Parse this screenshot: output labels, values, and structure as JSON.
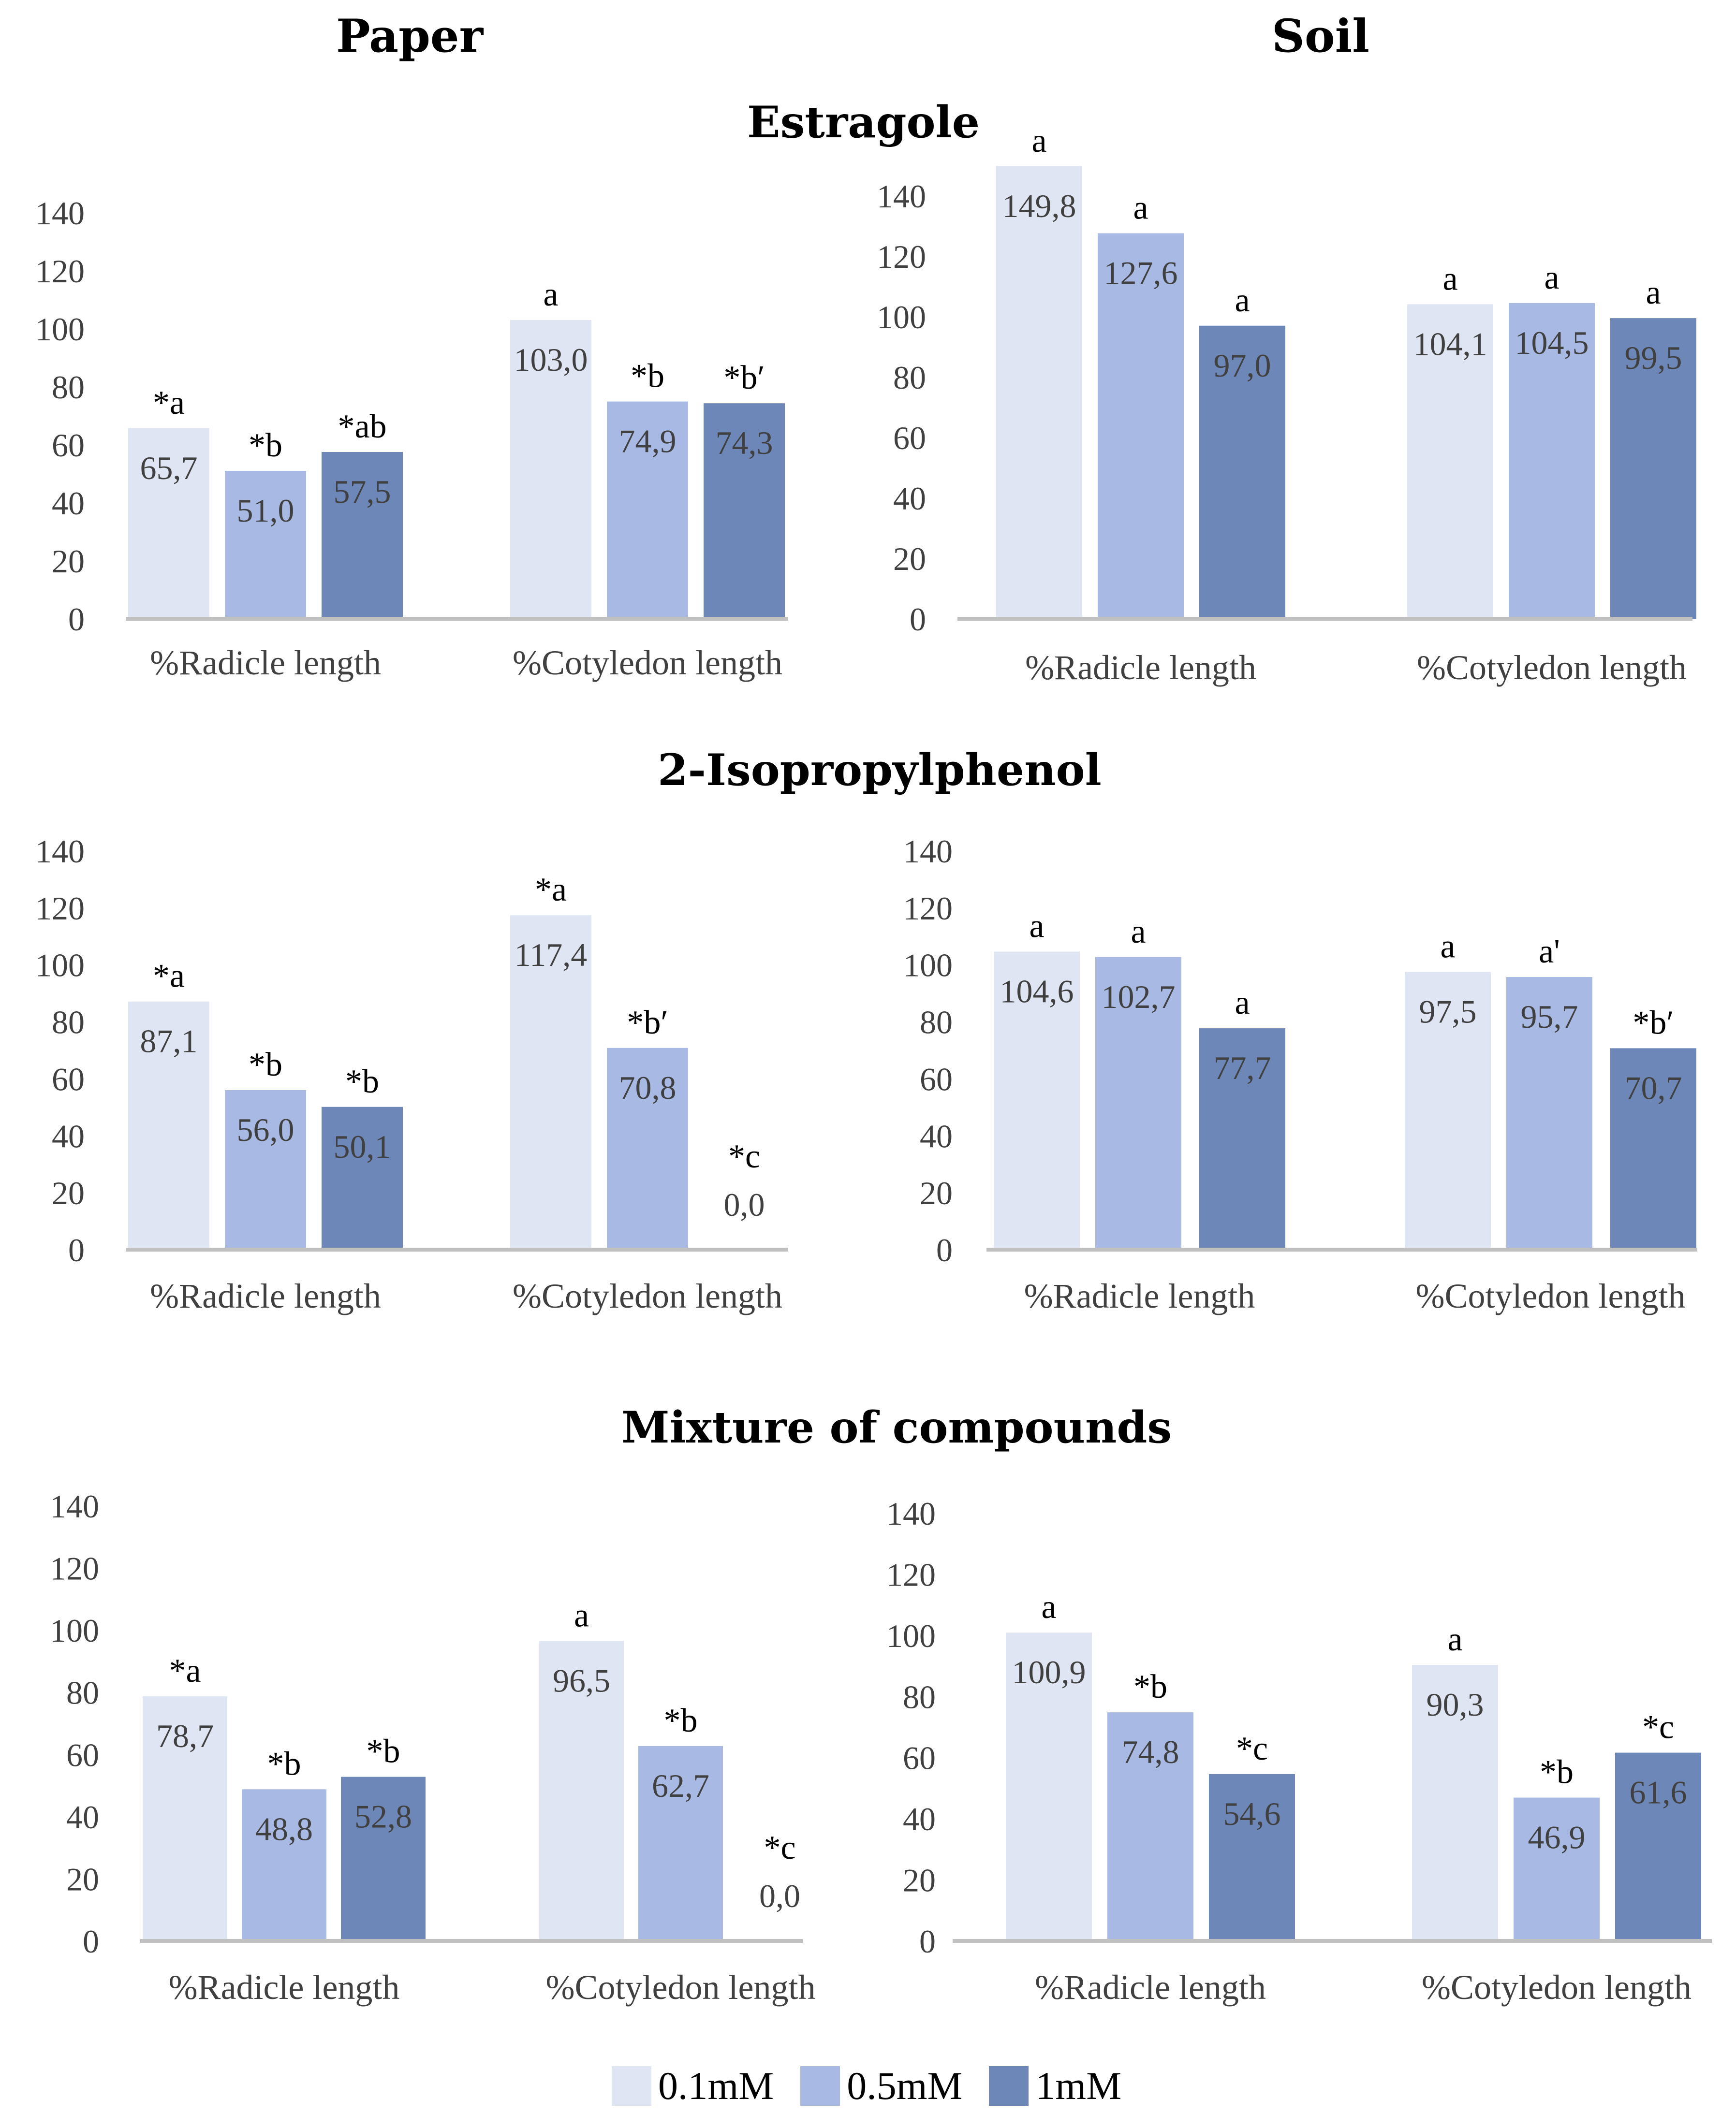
{
  "columns": [
    "Paper",
    "Soil"
  ],
  "legend": [
    {
      "label": "0.1mM",
      "color": "#dfe5f3"
    },
    {
      "label": "0.5mM",
      "color": "#a8bae4"
    },
    {
      "label": "1mM",
      "color": "#6d87b8"
    }
  ],
  "chart_data": [
    {
      "type": "bar",
      "title": "Estragole",
      "panel": "Paper",
      "categories": [
        "%Radicle length",
        "%Cotyledon length"
      ],
      "ylim": [
        0,
        140
      ],
      "yticks": [
        0,
        20,
        40,
        60,
        80,
        100,
        120,
        140
      ],
      "series": [
        {
          "name": "0.1mM",
          "values": [
            65.7,
            103.0
          ],
          "labels": [
            "65,7",
            "103,0"
          ],
          "letters": [
            "*a",
            "a"
          ]
        },
        {
          "name": "0.5mM",
          "values": [
            51.0,
            74.9
          ],
          "labels": [
            "51,0",
            "74,9"
          ],
          "letters": [
            "*b",
            "*b"
          ]
        },
        {
          "name": "1mM",
          "values": [
            57.5,
            74.3
          ],
          "labels": [
            "57,5",
            "74,3"
          ],
          "letters": [
            "*ab",
            "*b′"
          ]
        }
      ]
    },
    {
      "type": "bar",
      "title": "Estragole",
      "panel": "Soil",
      "categories": [
        "%Radicle length",
        "%Cotyledon length"
      ],
      "ylim": [
        0,
        140
      ],
      "yticks": [
        0,
        20,
        40,
        60,
        80,
        100,
        120,
        140
      ],
      "series": [
        {
          "name": "0.1mM",
          "values": [
            149.8,
            104.1
          ],
          "labels": [
            "149,8",
            "104,1"
          ],
          "letters": [
            "a",
            "a"
          ]
        },
        {
          "name": "0.5mM",
          "values": [
            127.6,
            104.5
          ],
          "labels": [
            "127,6",
            "104,5"
          ],
          "letters": [
            "a",
            "a"
          ]
        },
        {
          "name": "1mM",
          "values": [
            97.0,
            99.5
          ],
          "labels": [
            "97,0",
            "99,5"
          ],
          "letters": [
            "a",
            "a"
          ]
        }
      ]
    },
    {
      "type": "bar",
      "title": "2-Isopropylphenol",
      "panel": "Paper",
      "categories": [
        "%Radicle length",
        "%Cotyledon length"
      ],
      "ylim": [
        0,
        140
      ],
      "yticks": [
        0,
        20,
        40,
        60,
        80,
        100,
        120,
        140
      ],
      "series": [
        {
          "name": "0.1mM",
          "values": [
            87.1,
            117.4
          ],
          "labels": [
            "87,1",
            "117,4"
          ],
          "letters": [
            "*a",
            "*a"
          ]
        },
        {
          "name": "0.5mM",
          "values": [
            56.0,
            70.8
          ],
          "labels": [
            "56,0",
            "70,8"
          ],
          "letters": [
            "*b",
            "*b′"
          ]
        },
        {
          "name": "1mM",
          "values": [
            50.1,
            0.0
          ],
          "labels": [
            "50,1",
            "0,0"
          ],
          "letters": [
            "*b",
            "*c"
          ]
        }
      ]
    },
    {
      "type": "bar",
      "title": "2-Isopropylphenol",
      "panel": "Soil",
      "categories": [
        "%Radicle length",
        "%Cotyledon length"
      ],
      "ylim": [
        0,
        140
      ],
      "yticks": [
        0,
        20,
        40,
        60,
        80,
        100,
        120,
        140
      ],
      "series": [
        {
          "name": "0.1mM",
          "values": [
            104.6,
            97.5
          ],
          "labels": [
            "104,6",
            "97,5"
          ],
          "letters": [
            "a",
            "a"
          ]
        },
        {
          "name": "0.5mM",
          "values": [
            102.7,
            95.7
          ],
          "labels": [
            "102,7",
            "95,7"
          ],
          "letters": [
            "a",
            "a'"
          ]
        },
        {
          "name": "1mM",
          "values": [
            77.7,
            70.7
          ],
          "labels": [
            "77,7",
            "70,7"
          ],
          "letters": [
            "a",
            "*b′"
          ]
        }
      ]
    },
    {
      "type": "bar",
      "title": "Mixture of compounds",
      "panel": "Paper",
      "categories": [
        "%Radicle length",
        "%Cotyledon length"
      ],
      "ylim": [
        0,
        140
      ],
      "yticks": [
        0,
        20,
        40,
        60,
        80,
        100,
        120,
        140
      ],
      "series": [
        {
          "name": "0.1mM",
          "values": [
            78.7,
            96.5
          ],
          "labels": [
            "78,7",
            "96,5"
          ],
          "letters": [
            "*a",
            "a"
          ]
        },
        {
          "name": "0.5mM",
          "values": [
            48.8,
            62.7
          ],
          "labels": [
            "48,8",
            "62,7"
          ],
          "letters": [
            "*b",
            "*b"
          ]
        },
        {
          "name": "1mM",
          "values": [
            52.8,
            0.0
          ],
          "labels": [
            "52,8",
            "0,0"
          ],
          "letters": [
            "*b",
            "*c"
          ]
        }
      ]
    },
    {
      "type": "bar",
      "title": "Mixture of compounds",
      "panel": "Soil",
      "categories": [
        "%Radicle length",
        "%Cotyledon length"
      ],
      "ylim": [
        0,
        140
      ],
      "yticks": [
        0,
        20,
        40,
        60,
        80,
        100,
        120,
        140
      ],
      "series": [
        {
          "name": "0.1mM",
          "values": [
            100.9,
            90.3
          ],
          "labels": [
            "100,9",
            "90,3"
          ],
          "letters": [
            "a",
            "a"
          ]
        },
        {
          "name": "0.5mM",
          "values": [
            74.8,
            46.9
          ],
          "labels": [
            "74,8",
            "46,9"
          ],
          "letters": [
            "*b",
            "*b"
          ]
        },
        {
          "name": "1mM",
          "values": [
            54.6,
            61.6
          ],
          "labels": [
            "54,6",
            "61,6"
          ],
          "letters": [
            "*c",
            "*c"
          ]
        }
      ]
    }
  ]
}
